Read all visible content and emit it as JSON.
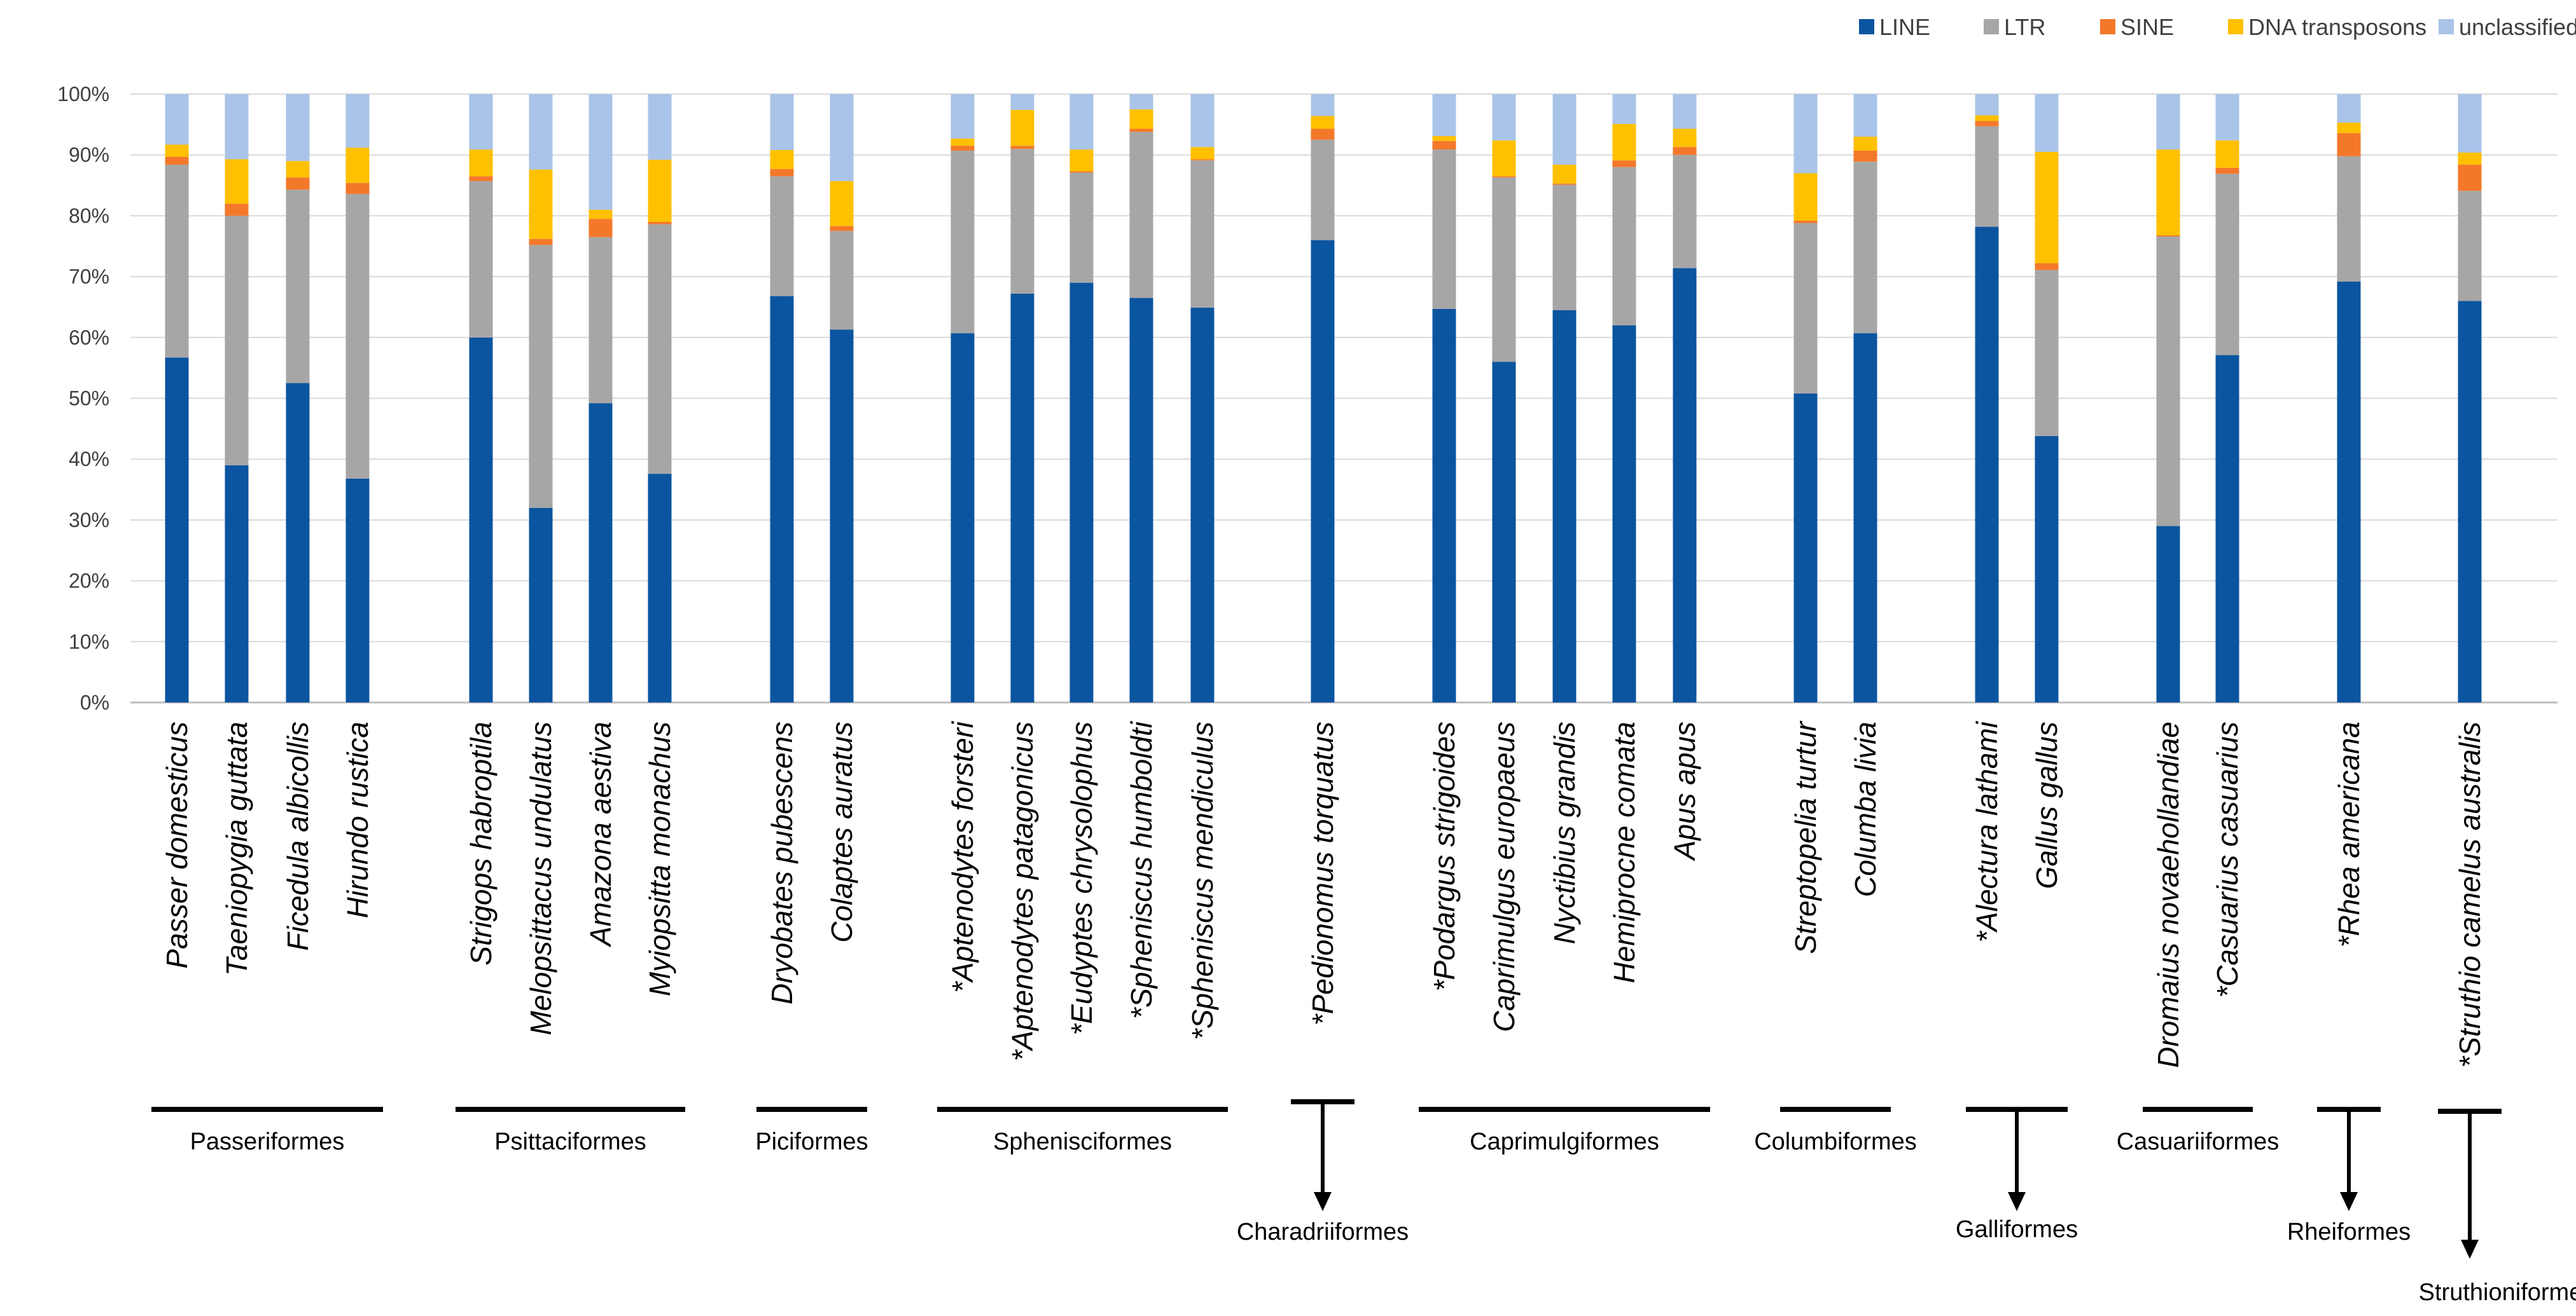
{
  "chart_data": {
    "type": "bar",
    "stacked": true,
    "normalized": true,
    "title": "",
    "xlabel": "",
    "ylabel": "",
    "ylim": [
      0,
      100
    ],
    "yticks": [
      "0%",
      "10%",
      "20%",
      "30%",
      "40%",
      "50%",
      "60%",
      "70%",
      "80%",
      "90%",
      "100%"
    ],
    "legend_position": "top-right",
    "colors": {
      "LINE": "#0b55a0",
      "LTR": "#a6a6a6",
      "SINE": "#f4782a",
      "DNA transposons": "#ffc000",
      "unclassified": "#a9c4e8",
      "gridline": "#d9d9d9"
    },
    "categories": [
      "Passer domesticus",
      "Taeniopygia guttata",
      "Ficedula albicollis",
      "Hirundo rustica",
      "Strigops habroptila",
      "Melopsittacus undulatus",
      "Amazona aestiva",
      "Myiopsitta monachus",
      "Dryobates pubescens",
      "Colaptes auratus",
      "*Aptenodytes forsteri",
      "*Aptenodytes patagonicus",
      "*Eudyptes chrysolophus",
      "*Spheniscus humboldti",
      "*Spheniscus mendiculus",
      "*Pedionomus torquatus",
      "*Podargus strigoides",
      "Caprimulgus europaeus",
      "Nyctibius grandis",
      "Hemiprocne comata",
      "Apus apus",
      "Streptopelia turtur",
      "Columba livia",
      "*Alectura lathami",
      "Gallus gallus",
      "Dromaius novaehollandiae",
      "*Casuarius casuarius",
      "*Rhea americana",
      "*Struthio camelus australis"
    ],
    "series": [
      {
        "name": "LINE",
        "values": [
          56.7,
          39,
          52.5,
          36.8,
          60,
          32,
          49.2,
          37.6,
          66.8,
          61.3,
          60.7,
          67.2,
          69,
          66.5,
          64.9,
          76,
          64.7,
          56,
          64.5,
          62,
          71.4,
          50.8,
          60.7,
          78.2,
          43.8,
          29,
          57.1,
          69.2,
          66
        ]
      },
      {
        "name": "LTR",
        "values": [
          31.7,
          41,
          31.8,
          46.8,
          25.7,
          43.2,
          27.3,
          41,
          19.7,
          16.2,
          30,
          23.8,
          18.1,
          27.3,
          24.2,
          16.5,
          26.2,
          30.3,
          20.6,
          26,
          18.6,
          28,
          28.2,
          16.5,
          27.3,
          47.6,
          29.8,
          20.6,
          18.1
        ]
      },
      {
        "name": "SINE",
        "values": [
          1.3,
          2,
          2,
          1.8,
          0.8,
          1,
          3,
          0.4,
          1.2,
          0.8,
          0.8,
          0.5,
          0.2,
          0.5,
          0.2,
          1.8,
          1.4,
          0.2,
          0.2,
          1.1,
          1.3,
          0.4,
          1.8,
          0.9,
          1.1,
          0.2,
          1,
          3.8,
          4.3
        ]
      },
      {
        "name": "DNA transposons",
        "values": [
          2,
          7.3,
          2.7,
          5.8,
          4.4,
          11.4,
          1.5,
          10.2,
          3.1,
          7.4,
          1.2,
          5.9,
          3.6,
          3.2,
          2,
          2.1,
          0.8,
          5.9,
          3.1,
          6,
          3,
          7.8,
          2.3,
          0.9,
          18.3,
          14.1,
          4.5,
          1.7,
          2
        ]
      },
      {
        "name": "unclassified",
        "values": [
          8.3,
          10.7,
          11,
          8.8,
          9.1,
          12.4,
          19,
          10.8,
          9.2,
          14.3,
          7.3,
          2.6,
          9.1,
          2.5,
          8.7,
          3.6,
          6.9,
          7.6,
          11.6,
          4.9,
          5.7,
          13,
          7,
          3.5,
          9.5,
          9.1,
          7.6,
          4.7,
          9.6
        ]
      }
    ],
    "groups": [
      {
        "label": "Passeriformes",
        "count": 4,
        "style": "bar"
      },
      {
        "label": "Psittaciformes",
        "count": 4,
        "style": "bar"
      },
      {
        "label": "Piciformes",
        "count": 2,
        "style": "bar"
      },
      {
        "label": "Sphenisciformes",
        "count": 5,
        "style": "bar"
      },
      {
        "label": "Charadriiformes",
        "count": 1,
        "style": "arrow"
      },
      {
        "label": "Caprimulgiformes",
        "count": 5,
        "style": "bar"
      },
      {
        "label": "Columbiformes",
        "count": 2,
        "style": "bar"
      },
      {
        "label": "Galliformes",
        "count": 2,
        "style": "arrow"
      },
      {
        "label": "Casuariiformes",
        "count": 2,
        "style": "bar"
      },
      {
        "label": "Rheiformes",
        "count": 1,
        "style": "arrow"
      },
      {
        "label": "Struthioniformes",
        "count": 1,
        "style": "arrow"
      }
    ]
  }
}
